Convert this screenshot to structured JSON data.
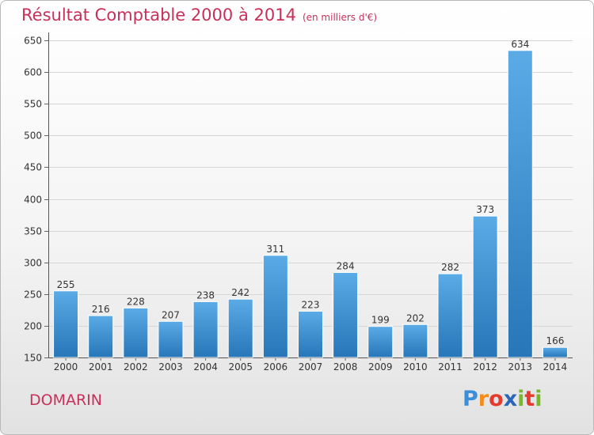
{
  "chart_data": {
    "type": "bar",
    "title": "Résultat Comptable 2000 à 2014",
    "subtitle": "(en milliers d'€)",
    "categories": [
      "2000",
      "2001",
      "2002",
      "2003",
      "2004",
      "2005",
      "2006",
      "2007",
      "2008",
      "2009",
      "2010",
      "2011",
      "2012",
      "2013",
      "2014"
    ],
    "values": [
      255,
      216,
      228,
      207,
      238,
      242,
      311,
      223,
      284,
      199,
      202,
      282,
      373,
      634,
      166
    ],
    "ylim": [
      150,
      650
    ],
    "yticks": [
      150,
      200,
      250,
      300,
      350,
      400,
      450,
      500,
      550,
      600,
      650
    ],
    "grid": true,
    "xlabel": "",
    "ylabel": ""
  },
  "commune": "DOMARIN",
  "logo": {
    "letters": [
      "P",
      "r",
      "o",
      "x",
      "i",
      "t",
      "i"
    ],
    "colors": [
      "#3a8fd8",
      "#f28c1e",
      "#e63a2e",
      "#2a67b8",
      "#79b82c",
      "#e63a2e",
      "#79b82c"
    ]
  },
  "colors": {
    "bar_top": "#5aabe6",
    "bar_bottom": "#2776b8",
    "accent": "#c8305a"
  }
}
